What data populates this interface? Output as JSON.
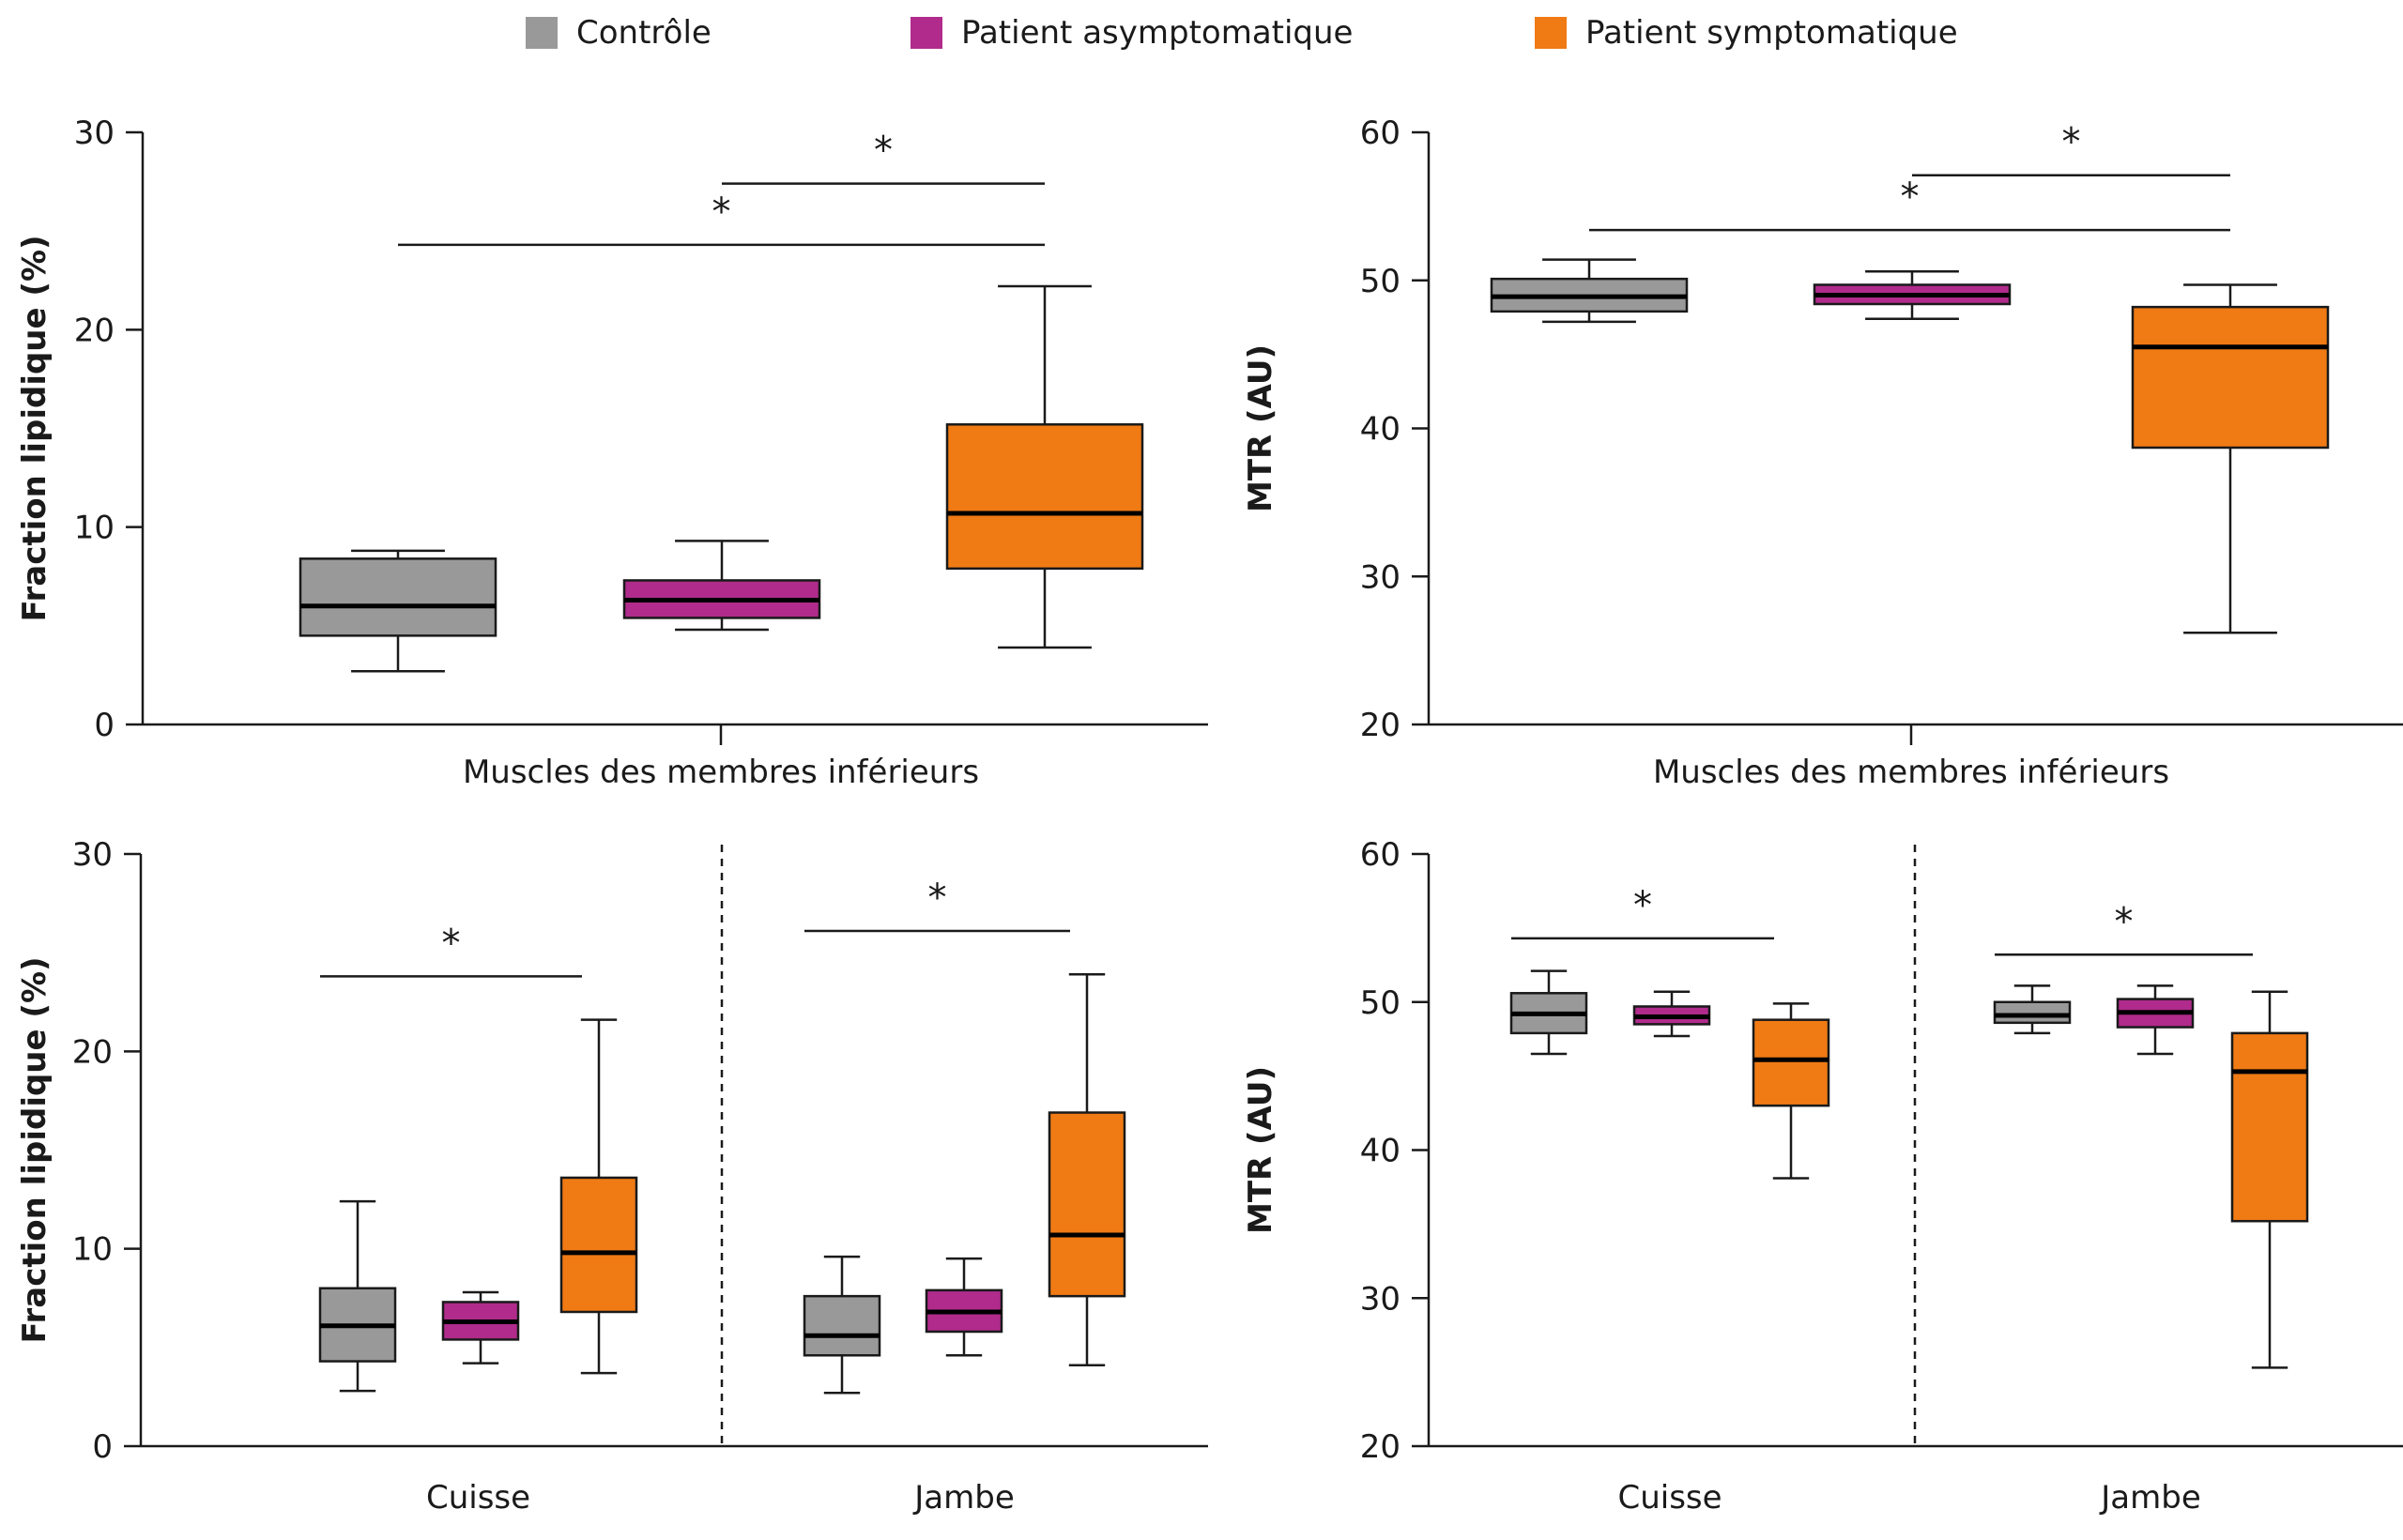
{
  "legend": [
    {
      "label": "Contrôle",
      "color": "#999999"
    },
    {
      "label": "Patient asymptomatique",
      "color": "#B02B8B"
    },
    {
      "label": "Patient symptomatique",
      "color": "#F07A14"
    }
  ],
  "colors": {
    "axis": "#1a1a1a",
    "median": "#000000",
    "box_stroke": "#1a1a1a"
  },
  "significance_symbol": "*",
  "chart_data": [
    {
      "type": "boxplot",
      "ylabel": "Fraction lipidique (%)",
      "ylim": [
        0,
        30
      ],
      "yticks": [
        0,
        10,
        20,
        30
      ],
      "groups": [
        {
          "label": "Muscles des membres inférieurs",
          "boxes": [
            {
              "series": "Contrôle",
              "min": 2.7,
              "q1": 4.5,
              "median": 6.0,
              "q3": 8.4,
              "max": 8.8
            },
            {
              "series": "Patient asymptomatique",
              "min": 4.8,
              "q1": 5.4,
              "median": 6.3,
              "q3": 7.3,
              "max": 9.3
            },
            {
              "series": "Patient symptomatique",
              "min": 3.9,
              "q1": 7.9,
              "median": 10.7,
              "q3": 15.2,
              "max": 22.2
            }
          ]
        }
      ],
      "significance": [
        {
          "group": 0,
          "from": 1,
          "to": 2,
          "label": "*",
          "y": 27.4
        },
        {
          "group": 0,
          "from": 0,
          "to": 2,
          "label": "*",
          "y": 24.3
        }
      ]
    },
    {
      "type": "boxplot",
      "ylabel": "MTR (AU)",
      "ylim": [
        20,
        60
      ],
      "yticks": [
        20,
        30,
        40,
        50,
        60
      ],
      "groups": [
        {
          "label": "Muscles des membres inférieurs",
          "boxes": [
            {
              "series": "Contrôle",
              "min": 47.2,
              "q1": 47.9,
              "median": 48.9,
              "q3": 50.1,
              "max": 51.4
            },
            {
              "series": "Patient asymptomatique",
              "min": 47.4,
              "q1": 48.4,
              "median": 49.0,
              "q3": 49.7,
              "max": 50.6
            },
            {
              "series": "Patient symptomatique",
              "min": 26.2,
              "q1": 38.7,
              "median": 45.5,
              "q3": 48.2,
              "max": 49.7
            }
          ]
        }
      ],
      "significance": [
        {
          "group": 0,
          "from": 1,
          "to": 2,
          "label": "*",
          "y": 57.1
        },
        {
          "group": 0,
          "from": 0,
          "to": 2,
          "label": "*",
          "y": 53.4
        }
      ]
    },
    {
      "type": "boxplot",
      "ylabel": "Fraction lipidique (%)",
      "ylim": [
        0,
        30
      ],
      "yticks": [
        0,
        10,
        20,
        30
      ],
      "groups": [
        {
          "label": "Cuisse",
          "boxes": [
            {
              "series": "Contrôle",
              "min": 2.8,
              "q1": 4.3,
              "median": 6.1,
              "q3": 8.0,
              "max": 12.4
            },
            {
              "series": "Patient asymptomatique",
              "min": 4.2,
              "q1": 5.4,
              "median": 6.3,
              "q3": 7.3,
              "max": 7.8
            },
            {
              "series": "Patient symptomatique",
              "min": 3.7,
              "q1": 6.8,
              "median": 9.8,
              "q3": 13.6,
              "max": 21.6
            }
          ]
        },
        {
          "label": "Jambe",
          "boxes": [
            {
              "series": "Contrôle",
              "min": 2.7,
              "q1": 4.6,
              "median": 5.6,
              "q3": 7.6,
              "max": 9.6
            },
            {
              "series": "Patient asymptomatique",
              "min": 4.6,
              "q1": 5.8,
              "median": 6.8,
              "q3": 7.9,
              "max": 9.5
            },
            {
              "series": "Patient symptomatique",
              "min": 4.1,
              "q1": 7.6,
              "median": 10.7,
              "q3": 16.9,
              "max": 23.9
            }
          ]
        }
      ],
      "significance": [
        {
          "group": 0,
          "from": 0,
          "to": 2,
          "label": "*",
          "y": 23.8
        },
        {
          "group": 1,
          "from": 0,
          "to": 2,
          "label": "*",
          "y": 26.1
        }
      ]
    },
    {
      "type": "boxplot",
      "ylabel": "MTR (AU)",
      "ylim": [
        20,
        60
      ],
      "yticks": [
        20,
        30,
        40,
        50,
        60
      ],
      "groups": [
        {
          "label": "Cuisse",
          "boxes": [
            {
              "series": "Contrôle",
              "min": 46.5,
              "q1": 47.9,
              "median": 49.2,
              "q3": 50.6,
              "max": 52.1
            },
            {
              "series": "Patient asymptomatique",
              "min": 47.7,
              "q1": 48.5,
              "median": 49.0,
              "q3": 49.7,
              "max": 50.7
            },
            {
              "series": "Patient symptomatique",
              "min": 38.1,
              "q1": 43.0,
              "median": 46.1,
              "q3": 48.8,
              "max": 49.9
            }
          ]
        },
        {
          "label": "Jambe",
          "boxes": [
            {
              "series": "Contrôle",
              "min": 47.9,
              "q1": 48.6,
              "median": 49.1,
              "q3": 50.0,
              "max": 51.1
            },
            {
              "series": "Patient asymptomatique",
              "min": 46.5,
              "q1": 48.3,
              "median": 49.3,
              "q3": 50.2,
              "max": 51.1
            },
            {
              "series": "Patient symptomatique",
              "min": 25.3,
              "q1": 35.2,
              "median": 45.3,
              "q3": 47.9,
              "max": 50.7
            }
          ]
        }
      ],
      "significance": [
        {
          "group": 0,
          "from": 0,
          "to": 2,
          "label": "*",
          "y": 54.3
        },
        {
          "group": 1,
          "from": 0,
          "to": 2,
          "label": "*",
          "y": 53.2
        }
      ]
    }
  ]
}
